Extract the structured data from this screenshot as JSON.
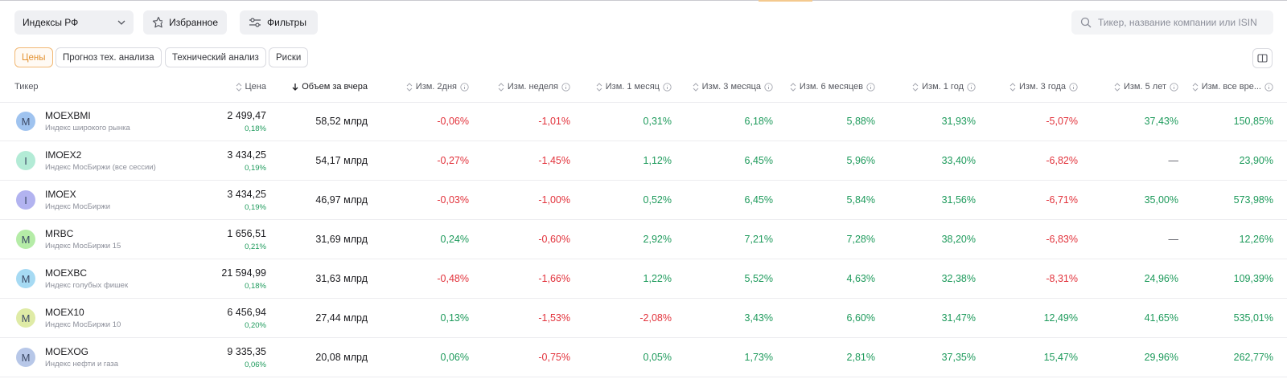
{
  "toolbar": {
    "dropdown": "Индексы РФ",
    "favorites": "Избранное",
    "filters": "Фильтры",
    "search_placeholder": "Тикер, название компании или ISIN"
  },
  "tabs": [
    "Цены",
    "Прогноз тех. анализа",
    "Технический анализ",
    "Риски"
  ],
  "active_tab": 0,
  "table": {
    "headers": [
      "Тикер",
      "Цена",
      "Объем за вчера",
      "Изм. 2дня",
      "Изм. неделя",
      "Изм. 1 месяц",
      "Изм. 3 месяца",
      "Изм. 6 месяцев",
      "Изм. 1 год",
      "Изм. 3 года",
      "Изм. 5 лет",
      "Изм. все вре..."
    ],
    "sorted_column": 2,
    "rows": [
      {
        "icon": "M",
        "icon_color": "#9fc3ef",
        "ticker": "MOEXBMI",
        "name": "Индекс широкого рынка",
        "price": "2 499,47",
        "price_change": "0,18%",
        "volume": "58,52 млрд",
        "changes": [
          "-0,06%",
          "-1,01%",
          "0,31%",
          "6,18%",
          "5,88%",
          "31,93%",
          "-5,07%",
          "37,43%",
          "150,85%"
        ]
      },
      {
        "icon": "I",
        "icon_color": "#b3ebd6",
        "ticker": "IMOEX2",
        "name": "Индекс МосБиржи (все сессии)",
        "price": "3 434,25",
        "price_change": "0,19%",
        "volume": "54,17 млрд",
        "changes": [
          "-0,27%",
          "-1,45%",
          "1,12%",
          "6,45%",
          "5,96%",
          "33,40%",
          "-6,82%",
          "—",
          "23,90%"
        ]
      },
      {
        "icon": "I",
        "icon_color": "#b2b3f0",
        "ticker": "IMOEX",
        "name": "Индекс МосБиржи",
        "price": "3 434,25",
        "price_change": "0,19%",
        "volume": "46,97 млрд",
        "changes": [
          "-0,03%",
          "-1,00%",
          "0,52%",
          "6,45%",
          "5,84%",
          "31,56%",
          "-6,71%",
          "35,00%",
          "573,98%"
        ]
      },
      {
        "icon": "M",
        "icon_color": "#b5eca7",
        "ticker": "MRBC",
        "name": "Индекс МосБиржи 15",
        "price": "1 656,51",
        "price_change": "0,21%",
        "volume": "31,69 млрд",
        "changes": [
          "0,24%",
          "-0,60%",
          "2,92%",
          "7,21%",
          "7,28%",
          "38,20%",
          "-6,83%",
          "—",
          "12,26%"
        ]
      },
      {
        "icon": "M",
        "icon_color": "#a6daf3",
        "ticker": "MOEXBC",
        "name": "Индекс голубых фишек",
        "price": "21 594,99",
        "price_change": "0,18%",
        "volume": "31,63 млрд",
        "changes": [
          "-0,48%",
          "-1,66%",
          "1,22%",
          "5,52%",
          "4,63%",
          "32,38%",
          "-8,31%",
          "24,96%",
          "109,39%"
        ]
      },
      {
        "icon": "M",
        "icon_color": "#dfeba6",
        "ticker": "MOEX10",
        "name": "Индекс МосБиржи 10",
        "price": "6 456,94",
        "price_change": "0,20%",
        "volume": "27,44 млрд",
        "changes": [
          "0,13%",
          "-1,53%",
          "-2,08%",
          "3,43%",
          "6,60%",
          "31,47%",
          "12,49%",
          "41,65%",
          "535,01%"
        ]
      },
      {
        "icon": "M",
        "icon_color": "#b7c7e8",
        "ticker": "MOEXOG",
        "name": "Индекс нефти и газа",
        "price": "9 335,35",
        "price_change": "0,06%",
        "volume": "20,08 млрд",
        "changes": [
          "0,06%",
          "-0,75%",
          "0,05%",
          "1,73%",
          "2,81%",
          "37,35%",
          "15,47%",
          "29,96%",
          "262,77%"
        ]
      }
    ]
  }
}
